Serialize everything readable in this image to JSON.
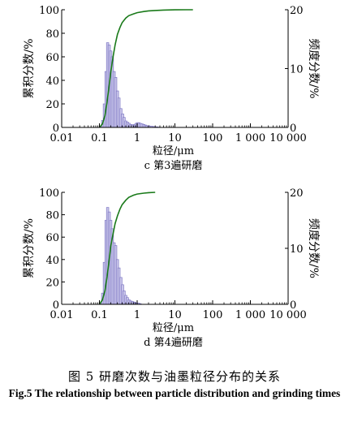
{
  "figure": {
    "caption_cn": "图 5    研磨次数与油墨粒径分布的关系",
    "caption_en": "Fig.5 The relationship between particle distribution and grinding times"
  },
  "colors": {
    "bar_fill": "#c9c6ea",
    "bar_stroke": "#7f78c4",
    "curve": "#1a7a1a",
    "axis": "#000000"
  },
  "chart_data": [
    {
      "type": "bar",
      "subtitle": "c 第3遍研磨",
      "xlabel": "粒径/μm",
      "ylabel": "累积分数/%",
      "y2label": "频度分数/%",
      "xscale": "log",
      "xlim": [
        0.01,
        10000
      ],
      "ylim": [
        0,
        100
      ],
      "y2lim": [
        0,
        20
      ],
      "xticks": [
        "0.01",
        "0.1",
        "1",
        "10",
        "100",
        "1 000",
        "10 000"
      ],
      "yticks": [
        "0",
        "20",
        "40",
        "60",
        "80",
        "100"
      ],
      "y2ticks": [
        "0",
        "10",
        "20"
      ],
      "series": [
        {
          "kind": "bar",
          "axis": "y2",
          "x": [
            0.11,
            0.122,
            0.135,
            0.15,
            0.165,
            0.182,
            0.2,
            0.22,
            0.245,
            0.27,
            0.3,
            0.33,
            0.37,
            0.41,
            0.45,
            0.5,
            0.55,
            0.61,
            0.68,
            0.75,
            0.83,
            0.92,
            1.0,
            1.1,
            1.2,
            1.35,
            1.5,
            1.65,
            1.8,
            2.0,
            2.2,
            2.45,
            2.7,
            3.0,
            3.3,
            3.7
          ],
          "values": [
            0.2,
            1.2,
            4.0,
            9.5,
            14.4,
            14.0,
            13.0,
            12.0,
            9.5,
            8.5,
            6.2,
            5.0,
            3.2,
            2.3,
            1.7,
            1.1,
            0.9,
            0.7,
            0.5,
            0.4,
            0.5,
            0.6,
            0.8,
            0.8,
            0.7,
            0.6,
            0.5,
            0.4,
            0.3,
            0.3,
            0.2,
            0.2,
            0.15,
            0.1,
            0.1,
            0.05
          ]
        },
        {
          "kind": "line",
          "axis": "y",
          "x": [
            0.1,
            0.12,
            0.14,
            0.16,
            0.18,
            0.2,
            0.23,
            0.26,
            0.3,
            0.35,
            0.4,
            0.5,
            0.6,
            0.8,
            1.0,
            1.5,
            2.0,
            3.0,
            5.0,
            10.0,
            20.0,
            30.0
          ],
          "values": [
            0,
            3,
            10,
            22,
            35,
            47,
            60,
            70,
            79,
            85,
            89,
            93,
            95,
            96.5,
            97.5,
            98.5,
            99,
            99.4,
            99.7,
            99.9,
            100,
            100
          ]
        }
      ]
    },
    {
      "type": "bar",
      "subtitle": "d 第4遍研磨",
      "xlabel": "粒径/μm",
      "ylabel": "累积分数/%",
      "y2label": "频度分数/%",
      "xscale": "log",
      "xlim": [
        0.01,
        10000
      ],
      "ylim": [
        0,
        100
      ],
      "y2lim": [
        0,
        20
      ],
      "xticks": [
        "0.01",
        "0.1",
        "1",
        "10",
        "100",
        "1 000",
        "10 000"
      ],
      "yticks": [
        "0",
        "20",
        "40",
        "60",
        "80",
        "100"
      ],
      "y2ticks": [
        "0",
        "10",
        "20"
      ],
      "series": [
        {
          "kind": "bar",
          "axis": "y2",
          "x": [
            0.11,
            0.122,
            0.135,
            0.15,
            0.165,
            0.182,
            0.2,
            0.22,
            0.245,
            0.27,
            0.3,
            0.33,
            0.37,
            0.41,
            0.45,
            0.5,
            0.55,
            0.61,
            0.68,
            0.75,
            0.83,
            0.92,
            1.0,
            1.1,
            1.2
          ],
          "values": [
            0.3,
            2.0,
            7.5,
            15.0,
            17.3,
            16.5,
            15.0,
            13.5,
            11.0,
            10.5,
            8.0,
            6.5,
            4.8,
            3.5,
            2.4,
            1.6,
            1.2,
            0.8,
            0.6,
            0.5,
            0.4,
            0.3,
            0.2,
            0.2,
            0.1
          ]
        },
        {
          "kind": "line",
          "axis": "y",
          "x": [
            0.1,
            0.12,
            0.14,
            0.16,
            0.18,
            0.2,
            0.23,
            0.26,
            0.3,
            0.35,
            0.4,
            0.5,
            0.6,
            0.8,
            1.0,
            1.5,
            2.0,
            3.0
          ],
          "values": [
            0,
            4,
            12,
            25,
            39,
            52,
            63,
            72,
            79,
            85,
            89,
            93,
            95.5,
            97.5,
            98.5,
            99.3,
            99.7,
            100
          ]
        }
      ]
    }
  ]
}
